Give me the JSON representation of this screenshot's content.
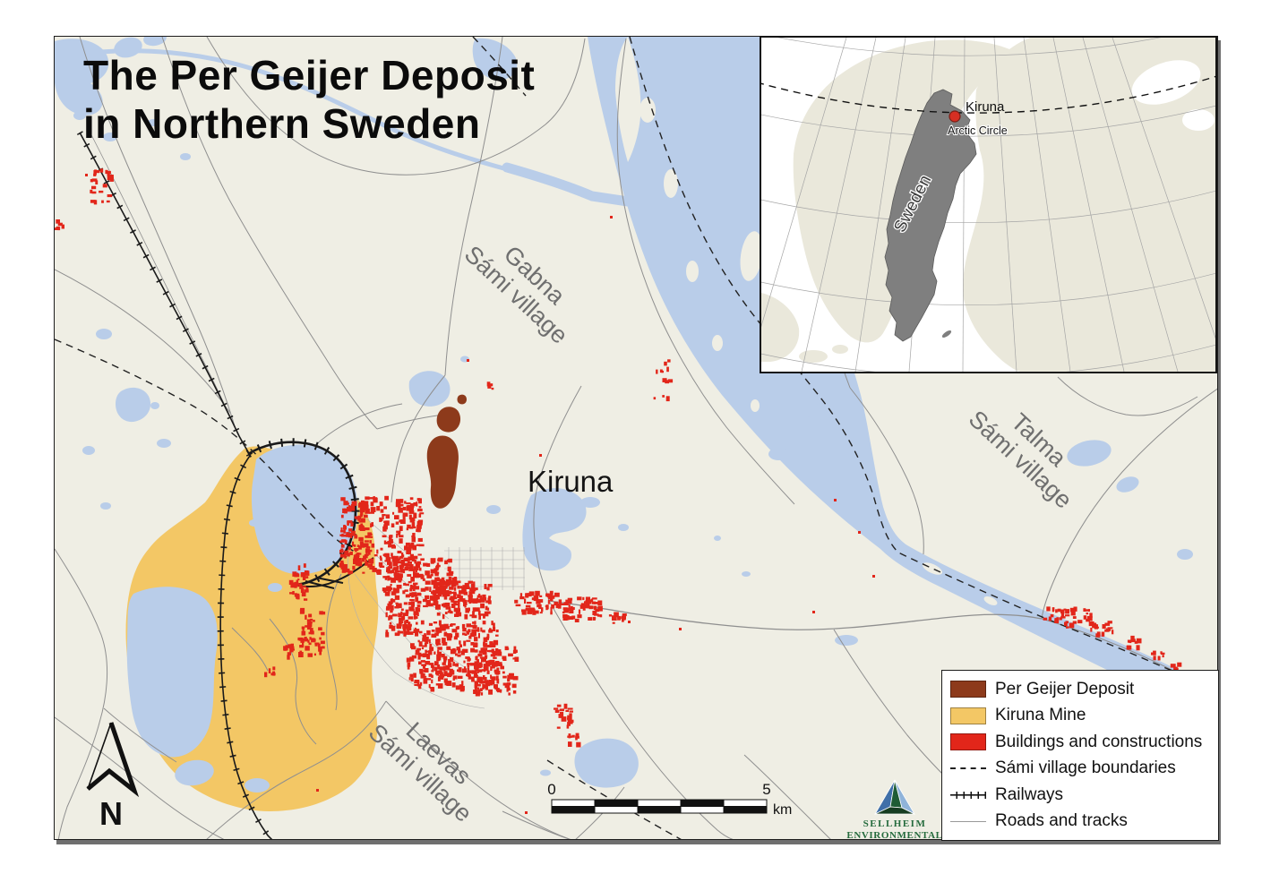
{
  "title": {
    "line1": "The Per Geijer Deposit",
    "line2": "in Northern Sweden"
  },
  "main_map": {
    "city_label": "Kiruna",
    "villages": [
      {
        "name": "Gabna",
        "subtitle": "Sámi village"
      },
      {
        "name": "Talma",
        "subtitle": "Sámi village"
      },
      {
        "name": "Laevas",
        "subtitle": "Sámi village"
      }
    ],
    "scale_bar": {
      "start": "0",
      "end": "5",
      "unit": "km"
    },
    "north_label": "N"
  },
  "inset_map": {
    "country_label": "Sweden",
    "city_label": "Kiruna",
    "arctic_circle_label": "Arctic Circle"
  },
  "legend": {
    "items": [
      {
        "label": "Per Geijer Deposit",
        "type": "swatch",
        "color": "#8D3A1B"
      },
      {
        "label": "Kiruna Mine",
        "type": "swatch",
        "color": "#F3C765"
      },
      {
        "label": "Buildings and constructions",
        "type": "swatch",
        "color": "#E2261A"
      },
      {
        "label": "Sámi village boundaries",
        "type": "dashed"
      },
      {
        "label": "Railways",
        "type": "railway"
      },
      {
        "label": "Roads and tracks",
        "type": "road"
      }
    ]
  },
  "logo": {
    "line1": "SELLHEIM",
    "line2": "ENVIRONMENTAL"
  },
  "colors": {
    "bg": "#EFEEE4",
    "water": "#B9CDE9",
    "mine": "#F3C765",
    "deposit": "#8D3A1B",
    "buildings": "#E2261A",
    "sweden": "#7F7F7F",
    "land": "#EAE8DB",
    "boundary": "#222222",
    "road": "#8F8F8F",
    "rail": "#1A1A1A"
  }
}
